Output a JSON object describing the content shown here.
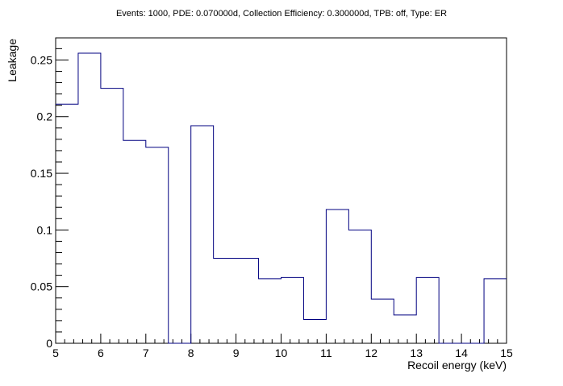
{
  "chart_data": {
    "type": "histogram",
    "title": "Events: 1000, PDE: 0.070000d, Collection Efficiency: 0.300000d, TPB: off, Type: ER",
    "xlabel": "Recoil energy (keV)",
    "ylabel": "Leakage",
    "xlim": [
      5,
      15
    ],
    "ylim": [
      0,
      0.2695
    ],
    "bin_width": 0.5,
    "bin_edges": [
      5,
      5.5,
      6,
      6.5,
      7,
      7.5,
      8,
      8.5,
      9,
      9.5,
      10,
      10.5,
      11,
      11.5,
      12,
      12.5,
      13,
      13.5,
      14,
      14.5,
      15
    ],
    "values": [
      0.211,
      0.256,
      0.225,
      0.179,
      0.173,
      0.0,
      0.192,
      0.075,
      0.075,
      0.057,
      0.058,
      0.021,
      0.118,
      0.1,
      0.039,
      0.025,
      0.058,
      0.0,
      0.0,
      0.057
    ],
    "x_ticks": [
      {
        "value": 5,
        "label": "5"
      },
      {
        "value": 6,
        "label": "6"
      },
      {
        "value": 7,
        "label": "7"
      },
      {
        "value": 8,
        "label": "8"
      },
      {
        "value": 9,
        "label": "9"
      },
      {
        "value": 10,
        "label": "10"
      },
      {
        "value": 11,
        "label": "11"
      },
      {
        "value": 12,
        "label": "12"
      },
      {
        "value": 13,
        "label": "13"
      },
      {
        "value": 14,
        "label": "14"
      },
      {
        "value": 15,
        "label": "15"
      }
    ],
    "y_ticks": [
      {
        "value": 0,
        "label": "0"
      },
      {
        "value": 0.05,
        "label": "0.05"
      },
      {
        "value": 0.1,
        "label": "0.1"
      },
      {
        "value": 0.15,
        "label": "0.15"
      },
      {
        "value": 0.2,
        "label": "0.2"
      },
      {
        "value": 0.25,
        "label": "0.25"
      }
    ],
    "x_minor_step": 0.2,
    "y_minor_step": 0.01,
    "grid": false,
    "legend": "none",
    "colors": {
      "series": "#000080",
      "axis": "#000000",
      "background": "#ffffff"
    }
  }
}
